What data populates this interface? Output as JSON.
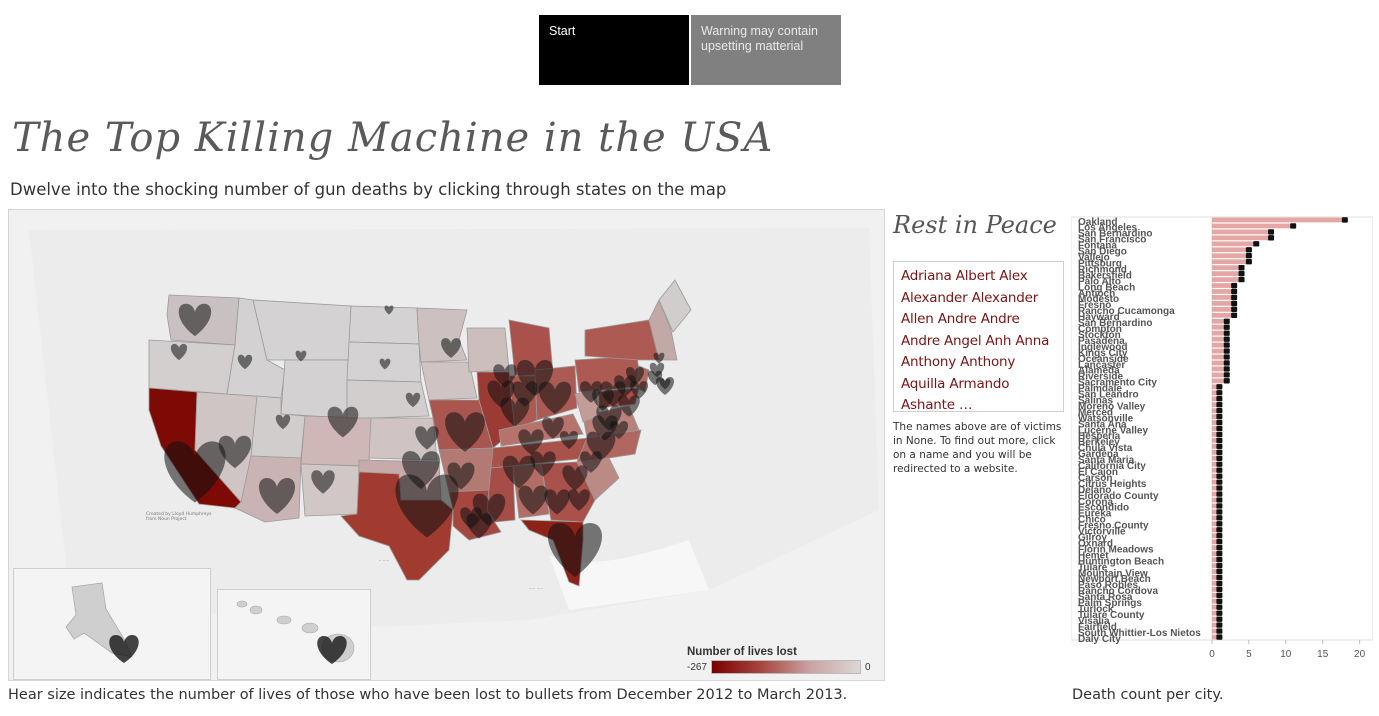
{
  "nav": {
    "start_label": "Start",
    "warning_label": "Warning may contain upsetting matterial"
  },
  "header": {
    "title": "The Top Killing Machine in the USA",
    "subtitle": "Dwelve into the shocking number of gun deaths by clicking through states on the map"
  },
  "map": {
    "credit_line1": "Created by Lloyd Humphreys",
    "credit_line2": "from Noun Project",
    "caption": "Hear size indicates the number of lives of those who have been lost to bullets from December 2012 to March 2013."
  },
  "legend": {
    "title": "Number of lives lost",
    "min_label": "-267",
    "max_label": "0",
    "color_max_deaths": "#7a0000",
    "color_zero": "#dcd6d6"
  },
  "memorial": {
    "title": "Rest in Peace",
    "names": "Adriana Albert Alex Alexander Alexander Allen Andre Andre Andre Angel Anh Anna Anthony Anthony Aquilla Armando Ashante …",
    "note": "The names above are of victims in None. To find out more, click on a name and you will be redirected to a website."
  },
  "chart_data": {
    "type": "bar",
    "orientation": "horizontal",
    "title": "",
    "xlabel": "",
    "ylabel": "",
    "caption": "Death count per city.",
    "xlim": [
      0,
      21
    ],
    "xticks": [
      0,
      5,
      10,
      15,
      20
    ],
    "bar_color": "#e5a6a6",
    "value_marker_color": "#111111",
    "categories": [
      "Oakland",
      "Los Angeles",
      "San Bernardino",
      "San Francisco",
      "Fontana",
      "San Diego",
      "Vallejo",
      "Pittsburg",
      "Richmond",
      "Bakersfield",
      "Palo Alto",
      "Long Beach",
      "Antioch",
      "Modesto",
      "Fresno",
      "Rancho Cucamonga",
      "Hayward",
      "San Bernardino",
      "Compton",
      "Stockton",
      "Pasadena",
      "Inglewood",
      "Kings City",
      "Oceanside",
      "Lancaster",
      "Alameda",
      "Riverside",
      "Sacramento City",
      "Palmdale",
      "San Leandro",
      "Salinas",
      "Moreno Valley",
      "Merced",
      "Watsonville",
      "Santa Ana",
      "Lucerne Valley",
      "Hesperia",
      "Berkeley",
      "Chula Vista",
      "Gardena",
      "Santa Maria",
      "California City",
      "El Cajon",
      "Carson",
      "Citrus Heights",
      "Delano",
      "Eldorado County",
      "Corona",
      "Escondido",
      "Eureka",
      "Chico",
      "Fresno County",
      "Victorville",
      "Gilroy",
      "Oxnard",
      "Florin Meadows",
      "Hemet",
      "Huntington Beach",
      "Tulare",
      "Mountain View",
      "Newport Beach",
      "Paso Robles",
      "Rancho Cordova",
      "Santa Rosa",
      "Palm Springs",
      "Turlock",
      "Tulare County",
      "Visalia",
      "Fairfield",
      "South Whittier-Los Nietos",
      "Daly City"
    ],
    "values": [
      18,
      11,
      8,
      8,
      6,
      5,
      5,
      5,
      4,
      4,
      4,
      3,
      3,
      3,
      3,
      3,
      3,
      2,
      2,
      2,
      2,
      2,
      2,
      2,
      2,
      2,
      2,
      2,
      1,
      1,
      1,
      1,
      1,
      1,
      1,
      1,
      1,
      1,
      1,
      1,
      1,
      1,
      1,
      1,
      1,
      1,
      1,
      1,
      1,
      1,
      1,
      1,
      1,
      1,
      1,
      1,
      1,
      1,
      1,
      1,
      1,
      1,
      1,
      1,
      1,
      1,
      1,
      1,
      1,
      1,
      1
    ],
    "visible_labels": [
      "Oakland",
      "Los Angeles",
      "San Bernardino",
      "San Francisco",
      "Fontana",
      "San Diego",
      "Vallejo",
      "Bakersfield",
      "Palo Alto",
      "Long Beach",
      "Rancho Cucamonga",
      "San Bernardino",
      "Compton",
      "Pasadena City",
      "San Leandro",
      "Watsonville",
      "Lucerne Valley",
      "Berkeley",
      "California City",
      "Citrus Heights",
      "Eldorado County",
      "Fresno County",
      "Florin Meadows",
      "Mountain View",
      "Newport Beach",
      "Rancho Cordova",
      "Palm Springs",
      "Tulare County",
      "Santa Clara",
      "South Whittier-Los Nietos"
    ]
  }
}
